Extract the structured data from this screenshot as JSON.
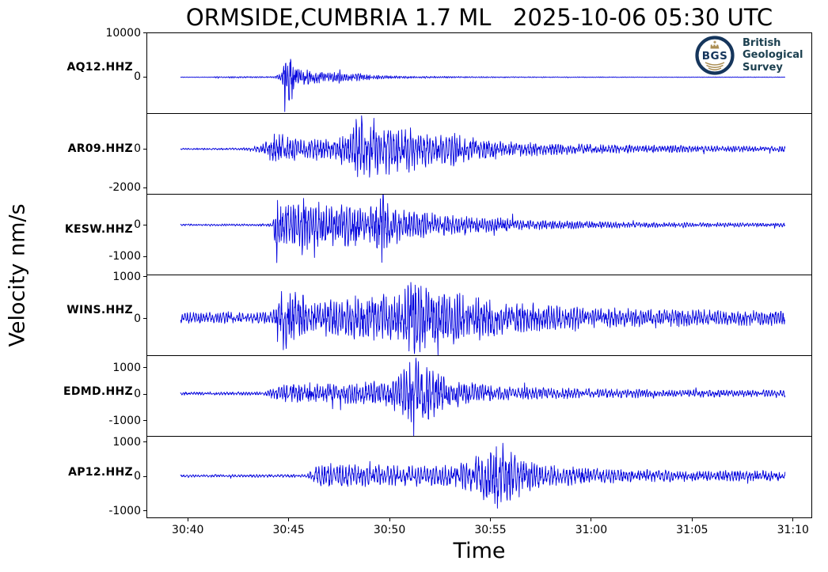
{
  "figure": {
    "title": "ORMSIDE,CUMBRIA 1.7 ML   2025-10-06 05:30 UTC",
    "xlabel": "Time",
    "ylabel": "Velocity nm/s"
  },
  "logo": {
    "abbr": "BGS",
    "lines": [
      "British",
      "Geological",
      "Survey"
    ],
    "navy": "#16365c",
    "text_color": "#1c4050",
    "gold": "#ab8d52"
  },
  "chart_data": {
    "type": "line",
    "title": "ORMSIDE,CUMBRIA 1.7 ML   2025-10-06 05:30 UTC",
    "xlabel": "Time",
    "ylabel": "Velocity nm/s",
    "trace_color": "#0000dd",
    "background": "#ffffff",
    "grid": false,
    "legend": "none",
    "xlim": [
      -2.05,
      30.95
    ],
    "t_range": [
      -0.4,
      29.65
    ],
    "x_ticks": [
      {
        "value": 0,
        "label": "30:40"
      },
      {
        "value": 5,
        "label": "30:45"
      },
      {
        "value": 10,
        "label": "30:50"
      },
      {
        "value": 15,
        "label": "30:55"
      },
      {
        "value": 20,
        "label": "31:00"
      },
      {
        "value": 25,
        "label": "31:05"
      },
      {
        "value": 30,
        "label": "31:10"
      }
    ],
    "panels": [
      {
        "station": "AQ12.HHZ",
        "ylim": [
          -8250,
          10100
        ],
        "yticks": [
          10000,
          0
        ],
        "seed": 101,
        "freq": 9,
        "envelope": [
          [
            -0.4,
            60
          ],
          [
            1.2,
            70
          ],
          [
            1.45,
            350
          ],
          [
            1.6,
            120
          ],
          [
            2.2,
            220
          ],
          [
            2.8,
            200
          ],
          [
            3.4,
            160
          ],
          [
            4.3,
            200
          ],
          [
            4.65,
            1200
          ],
          [
            4.8,
            9500
          ],
          [
            5.05,
            8000
          ],
          [
            5.3,
            3500
          ],
          [
            5.6,
            2000
          ],
          [
            6.2,
            1600
          ],
          [
            6.9,
            1000
          ],
          [
            7.5,
            1400
          ],
          [
            8.1,
            800
          ],
          [
            8.6,
            1000
          ],
          [
            9.2,
            500
          ],
          [
            10,
            380
          ],
          [
            11,
            300
          ],
          [
            12.5,
            220
          ],
          [
            14,
            160
          ],
          [
            16,
            120
          ],
          [
            18,
            100
          ],
          [
            20,
            90
          ],
          [
            22,
            80
          ],
          [
            25,
            70
          ],
          [
            29.65,
            65
          ]
        ]
      },
      {
        "station": "AR09.HHZ",
        "ylim": [
          -2340,
          1830
        ],
        "yticks": [
          0,
          -2000
        ],
        "seed": 202,
        "freq": 7,
        "envelope": [
          [
            -0.4,
            45
          ],
          [
            1.5,
            50
          ],
          [
            2.5,
            60
          ],
          [
            3.3,
            130
          ],
          [
            3.8,
            350
          ],
          [
            4.15,
            800
          ],
          [
            4.5,
            1000
          ],
          [
            4.8,
            600
          ],
          [
            5.3,
            650
          ],
          [
            5.9,
            500
          ],
          [
            6.4,
            600
          ],
          [
            7,
            550
          ],
          [
            7.6,
            700
          ],
          [
            8.1,
            800
          ],
          [
            8.45,
            2200
          ],
          [
            8.8,
            1300
          ],
          [
            9.2,
            1600
          ],
          [
            9.6,
            1000
          ],
          [
            10,
            1500
          ],
          [
            10.4,
            1100
          ],
          [
            10.9,
            1400
          ],
          [
            11.4,
            900
          ],
          [
            11.9,
            1000
          ],
          [
            12.5,
            800
          ],
          [
            13.2,
            900
          ],
          [
            14,
            600
          ],
          [
            15,
            480
          ],
          [
            16,
            400
          ],
          [
            17.5,
            330
          ],
          [
            19,
            280
          ],
          [
            21,
            230
          ],
          [
            23,
            200
          ],
          [
            25,
            180
          ],
          [
            27,
            160
          ],
          [
            29.65,
            150
          ]
        ]
      },
      {
        "station": "KESW.HHZ",
        "ylim": [
          -1590,
          970
        ],
        "yticks": [
          0,
          -1000
        ],
        "seed": 303,
        "freq": 7.5,
        "envelope": [
          [
            -0.4,
            30
          ],
          [
            2,
            32
          ],
          [
            3.5,
            38
          ],
          [
            4.2,
            55
          ],
          [
            4.4,
            1300
          ],
          [
            4.7,
            1000
          ],
          [
            5.1,
            800
          ],
          [
            5.6,
            900
          ],
          [
            6.1,
            700
          ],
          [
            6.7,
            800
          ],
          [
            7.3,
            600
          ],
          [
            7.9,
            680
          ],
          [
            8.6,
            550
          ],
          [
            9.3,
            750
          ],
          [
            9.6,
            1550
          ],
          [
            9.9,
            800
          ],
          [
            10.4,
            650
          ],
          [
            11,
            500
          ],
          [
            11.7,
            420
          ],
          [
            12.5,
            360
          ],
          [
            13.5,
            300
          ],
          [
            14.8,
            250
          ],
          [
            16.5,
            190
          ],
          [
            18,
            140
          ],
          [
            20,
            110
          ],
          [
            22,
            90
          ],
          [
            24,
            80
          ],
          [
            26.5,
            70
          ],
          [
            29.65,
            65
          ]
        ]
      },
      {
        "station": "WINS.HHZ",
        "ylim": [
          -900,
          1030
        ],
        "yticks": [
          1000,
          0
        ],
        "seed": 404,
        "freq": 7,
        "envelope": [
          [
            -0.4,
            150
          ],
          [
            1,
            135
          ],
          [
            2,
            145
          ],
          [
            3,
            125
          ],
          [
            4.2,
            150
          ],
          [
            4.55,
            800
          ],
          [
            4.85,
            950
          ],
          [
            5.2,
            600
          ],
          [
            5.6,
            680
          ],
          [
            6,
            430
          ],
          [
            6.6,
            380
          ],
          [
            7.1,
            470
          ],
          [
            7.7,
            420
          ],
          [
            8.2,
            520
          ],
          [
            8.8,
            570
          ],
          [
            9.4,
            610
          ],
          [
            9.9,
            520
          ],
          [
            10.5,
            580
          ],
          [
            11,
            900
          ],
          [
            11.35,
            1000
          ],
          [
            11.7,
            780
          ],
          [
            12.1,
            620
          ],
          [
            12.5,
            800
          ],
          [
            12.9,
            540
          ],
          [
            13.4,
            700
          ],
          [
            13.9,
            480
          ],
          [
            14.6,
            520
          ],
          [
            15.3,
            420
          ],
          [
            16.2,
            370
          ],
          [
            17.2,
            320
          ],
          [
            18.5,
            290
          ],
          [
            20,
            260
          ],
          [
            21.5,
            230
          ],
          [
            23,
            215
          ],
          [
            25,
            200
          ],
          [
            27,
            190
          ],
          [
            29.65,
            185
          ]
        ]
      },
      {
        "station": "EDMD.HHZ",
        "ylim": [
          -1620,
          1430
        ],
        "yticks": [
          1000,
          0,
          -1000
        ],
        "seed": 505,
        "freq": 7,
        "envelope": [
          [
            -0.4,
            65
          ],
          [
            2,
            62
          ],
          [
            3.8,
            70
          ],
          [
            4.5,
            300
          ],
          [
            4.9,
            430
          ],
          [
            5.4,
            360
          ],
          [
            5.9,
            420
          ],
          [
            6.5,
            360
          ],
          [
            7.1,
            410
          ],
          [
            7.7,
            370
          ],
          [
            8.4,
            420
          ],
          [
            9.1,
            470
          ],
          [
            9.7,
            520
          ],
          [
            10.2,
            680
          ],
          [
            10.6,
            850
          ],
          [
            10.95,
            1250
          ],
          [
            11.25,
            1450
          ],
          [
            11.55,
            1100
          ],
          [
            11.9,
            1200
          ],
          [
            12.3,
            950
          ],
          [
            12.7,
            750
          ],
          [
            13.2,
            550
          ],
          [
            13.9,
            430
          ],
          [
            14.8,
            340
          ],
          [
            15.8,
            280
          ],
          [
            17,
            240
          ],
          [
            18.5,
            210
          ],
          [
            20,
            185
          ],
          [
            22,
            165
          ],
          [
            24,
            150
          ],
          [
            26,
            140
          ],
          [
            29.65,
            135
          ]
        ]
      },
      {
        "station": "AP12.HHZ",
        "ylim": [
          -1210,
          1140
        ],
        "yticks": [
          1000,
          0,
          -1000
        ],
        "seed": 606,
        "freq": 6.5,
        "envelope": [
          [
            -0.4,
            40
          ],
          [
            2,
            42
          ],
          [
            4,
            45
          ],
          [
            5.9,
            52
          ],
          [
            6.3,
            280
          ],
          [
            6.7,
            380
          ],
          [
            7.2,
            300
          ],
          [
            7.9,
            340
          ],
          [
            8.6,
            300
          ],
          [
            9.4,
            340
          ],
          [
            10.2,
            300
          ],
          [
            11,
            320
          ],
          [
            12,
            280
          ],
          [
            13,
            310
          ],
          [
            13.7,
            420
          ],
          [
            14.2,
            560
          ],
          [
            14.7,
            760
          ],
          [
            15.1,
            950
          ],
          [
            15.45,
            1120
          ],
          [
            15.75,
            780
          ],
          [
            16.1,
            850
          ],
          [
            16.5,
            560
          ],
          [
            17.1,
            430
          ],
          [
            17.8,
            330
          ],
          [
            18.7,
            280
          ],
          [
            19.8,
            240
          ],
          [
            21,
            210
          ],
          [
            22.5,
            190
          ],
          [
            24,
            175
          ],
          [
            26,
            160
          ],
          [
            29.65,
            155
          ]
        ]
      }
    ]
  }
}
